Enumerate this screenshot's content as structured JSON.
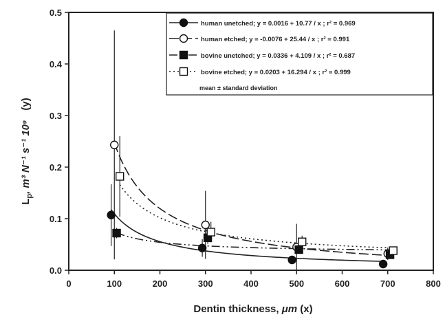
{
  "chart_data": {
    "type": "scatter",
    "xlabel": "Dentin thickness, ",
    "xlabel_unit": "μm",
    "xlabel_suffix": " (x)",
    "ylabel": "L",
    "ylabel_sub": "p",
    "ylabel_units": ", m³ N⁻¹ s⁻¹ 10⁹",
    "ylabel_suffix": "(y)",
    "xlim": [
      0,
      800
    ],
    "ylim": [
      0,
      0.5
    ],
    "xticks": [
      0,
      100,
      200,
      300,
      400,
      500,
      600,
      700,
      800
    ],
    "yticks": [
      0.0,
      0.1,
      0.2,
      0.3,
      0.4,
      0.5
    ],
    "xtick_labels": [
      "0",
      "100",
      "200",
      "300",
      "400",
      "500",
      "600",
      "700",
      "800"
    ],
    "ytick_labels": [
      "0.0",
      "0.1",
      "0.2",
      "0.3",
      "0.4",
      "0.5"
    ],
    "grid": false,
    "legend_position": "top-right",
    "legend_note": "mean ± standard deviation",
    "series": [
      {
        "name": "human unetched; y = 0.0016 + 10.77 / x ; r² = 0.969",
        "marker": "filled-circle",
        "line": "solid",
        "fit": {
          "a": 0.0016,
          "b": 10.77
        },
        "points": [
          {
            "x": 93,
            "y": 0.107,
            "err": 0.06
          },
          {
            "x": 293,
            "y": 0.043,
            "err": 0.017
          },
          {
            "x": 490,
            "y": 0.02,
            "err": 0.007
          },
          {
            "x": 690,
            "y": 0.012,
            "err": 0.004
          }
        ]
      },
      {
        "name": "human etched; y = -0.0076 + 25.44 / x ; r² = 0.991",
        "marker": "open-circle",
        "line": "long-dash",
        "fit": {
          "a": -0.0076,
          "b": 25.44
        },
        "points": [
          {
            "x": 100,
            "y": 0.243,
            "err": 0.222
          },
          {
            "x": 300,
            "y": 0.088,
            "err": 0.066
          },
          {
            "x": 500,
            "y": 0.045,
            "err": 0.045
          },
          {
            "x": 700,
            "y": 0.032,
            "err": 0.012
          }
        ]
      },
      {
        "name": "bovine unetched; y = 0.0336 + 4.109 / x ; r² = 0.687",
        "marker": "filled-square",
        "line": "dash-dot-dot",
        "fit": {
          "a": 0.0336,
          "b": 4.109
        },
        "points": [
          {
            "x": 105,
            "y": 0.072,
            "err": 0.01
          },
          {
            "x": 305,
            "y": 0.063,
            "err": 0.012
          },
          {
            "x": 505,
            "y": 0.04,
            "err": 0.008
          },
          {
            "x": 705,
            "y": 0.03,
            "err": 0.006
          }
        ]
      },
      {
        "name": "bovine etched; y = 0.0203 + 16.294 / x ; r² = 0.999",
        "marker": "open-square",
        "line": "dotted",
        "fit": {
          "a": 0.0203,
          "b": 16.294
        },
        "points": [
          {
            "x": 112,
            "y": 0.182,
            "err": 0.078
          },
          {
            "x": 312,
            "y": 0.074,
            "err": 0.02
          },
          {
            "x": 512,
            "y": 0.055,
            "err": 0.012
          },
          {
            "x": 712,
            "y": 0.038,
            "err": 0.008
          }
        ]
      }
    ]
  }
}
